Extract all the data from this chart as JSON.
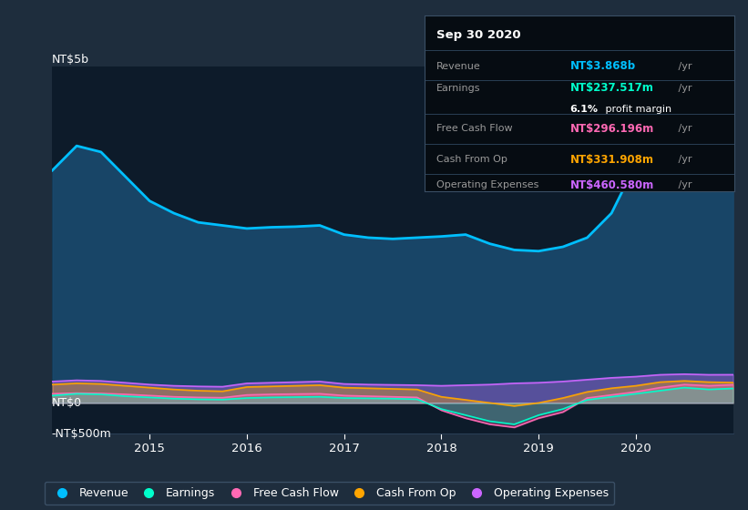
{
  "bg_color": "#1e2d3d",
  "plot_bg_color": "#0d1b2a",
  "grid_color": "#2a3f55",
  "title_label": "NT$5b",
  "ylabel_zero": "NT$0",
  "ylabel_neg": "-NT$500m",
  "ylim": [
    -500,
    5500
  ],
  "years": [
    2014.0,
    2014.25,
    2014.5,
    2014.75,
    2015.0,
    2015.25,
    2015.5,
    2015.75,
    2016.0,
    2016.25,
    2016.5,
    2016.75,
    2017.0,
    2017.25,
    2017.5,
    2017.75,
    2018.0,
    2018.25,
    2018.5,
    2018.75,
    2019.0,
    2019.25,
    2019.5,
    2019.75,
    2020.0,
    2020.25,
    2020.5,
    2020.75,
    2021.0
  ],
  "revenue": [
    3800,
    4200,
    4100,
    3700,
    3300,
    3100,
    2950,
    2900,
    2850,
    2870,
    2880,
    2900,
    2750,
    2700,
    2680,
    2700,
    2720,
    2750,
    2600,
    2500,
    2480,
    2550,
    2700,
    3100,
    3900,
    4300,
    4200,
    4000,
    3868
  ],
  "earnings": [
    120,
    150,
    140,
    110,
    90,
    70,
    60,
    55,
    80,
    90,
    95,
    100,
    80,
    75,
    70,
    60,
    -100,
    -200,
    -300,
    -350,
    -200,
    -100,
    50,
    100,
    150,
    200,
    250,
    220,
    237
  ],
  "free_cash_flow": [
    150,
    160,
    155,
    140,
    120,
    100,
    90,
    85,
    130,
    140,
    145,
    150,
    120,
    110,
    100,
    90,
    -120,
    -250,
    -350,
    -400,
    -250,
    -150,
    80,
    130,
    180,
    250,
    300,
    280,
    296
  ],
  "cash_from_op": [
    300,
    320,
    310,
    280,
    250,
    220,
    200,
    190,
    260,
    270,
    280,
    290,
    250,
    240,
    230,
    220,
    100,
    50,
    0,
    -50,
    0,
    80,
    180,
    240,
    280,
    340,
    360,
    340,
    332
  ],
  "operating_expenses": [
    350,
    370,
    360,
    330,
    300,
    280,
    270,
    265,
    320,
    330,
    340,
    350,
    310,
    300,
    295,
    290,
    280,
    290,
    300,
    320,
    330,
    350,
    380,
    410,
    430,
    460,
    470,
    460,
    461
  ],
  "revenue_color": "#00bfff",
  "earnings_color": "#00ffcc",
  "fcf_color": "#ff69b4",
  "cashop_color": "#ffa500",
  "opex_color": "#cc66ff",
  "revenue_fill": "#1a4a6e",
  "legend_bg": "#1e2d3d",
  "legend_border": "#3a4f65",
  "tooltip_bg": "#060c12",
  "tooltip_border": "#3a4f65",
  "tooltip_date": "Sep 30 2020",
  "tooltip_revenue_label": "Revenue",
  "tooltip_revenue_val": "NT$3.868b",
  "tooltip_earnings_label": "Earnings",
  "tooltip_earnings_val": "NT$237.517m",
  "tooltip_margin_val": "6.1%",
  "tooltip_margin_text": " profit margin",
  "tooltip_fcf_label": "Free Cash Flow",
  "tooltip_fcf_val": "NT$296.196m",
  "tooltip_cashop_label": "Cash From Op",
  "tooltip_cashop_val": "NT$331.908m",
  "tooltip_opex_label": "Operating Expenses",
  "tooltip_opex_val": "NT$460.580m"
}
